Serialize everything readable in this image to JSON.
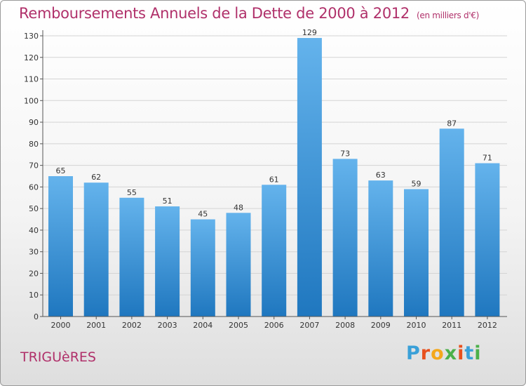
{
  "title": "Remboursements Annuels de la Dette de 2000 à 2012",
  "unit_note": "(en milliers d'€)",
  "commune": "TRIGUèRES",
  "logo": {
    "letters": [
      "P",
      "r",
      "o",
      "x",
      "i",
      "t",
      "i"
    ],
    "colors": [
      "#3aa0d8",
      "#e8501d",
      "#f4a81c",
      "#4bb04a",
      "#e8501d",
      "#3aa0d8",
      "#4bb04a"
    ]
  },
  "colors": {
    "bar_top": "#64b3ec",
    "bar_bottom": "#1f77bf",
    "accent": "#b0306a",
    "grid": "#d4d4d4"
  },
  "chart_data": {
    "type": "bar",
    "categories": [
      "2000",
      "2001",
      "2002",
      "2003",
      "2004",
      "2005",
      "2006",
      "2007",
      "2008",
      "2009",
      "2010",
      "2011",
      "2012"
    ],
    "values": [
      65,
      62,
      55,
      51,
      45,
      48,
      61,
      129,
      73,
      63,
      59,
      87,
      71
    ],
    "ylim": [
      0,
      130
    ],
    "yticks": [
      0,
      10,
      20,
      30,
      40,
      50,
      60,
      70,
      80,
      90,
      100,
      110,
      120,
      130
    ],
    "grid": true
  }
}
